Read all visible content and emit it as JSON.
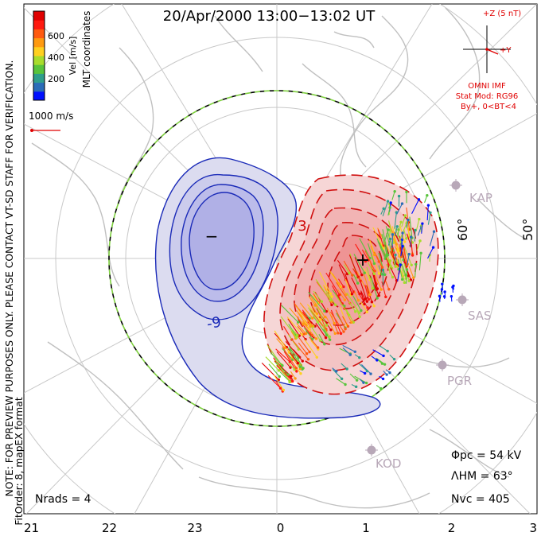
{
  "title": "20/Apr/2000  13:00−13:02  UT",
  "colorbar": {
    "label": "Vel [m/s]",
    "ticks": [
      "600",
      "400",
      "200"
    ],
    "colors": [
      "#0010ff",
      "#2a6cb8",
      "#2e9e8c",
      "#58c43c",
      "#a8dc2c",
      "#ffd020",
      "#ff9a10",
      "#ff5a10",
      "#ff1a10",
      "#e00000"
    ]
  },
  "coordinates_label": "MLT coordinates",
  "velocity_scale": "1000 m/s",
  "side_note_1": "NOTE: FOR PREVIEW PURPOSES ONLY. PLEASE CONTACT VT-SD STAFF FOR VERIFICATION.",
  "side_note_2": "FitOrder: 8, mapEX format",
  "imf": {
    "z_label": "+Z (5 nT)",
    "y_label": "+Y",
    "source": "OMNI IMF",
    "stat_mod": "Stat Mod: RG96",
    "condition": "By+, 0<BT<4"
  },
  "latitude_labels": [
    "60°",
    "50°"
  ],
  "radars": [
    "KAP",
    "SAS",
    "PGR",
    "KOD"
  ],
  "contour_labels": {
    "neg_min": "−",
    "pos_max": "+",
    "neg_contour": "-9",
    "pos_contour": "3"
  },
  "stats": {
    "phi_pc": "Φpc = 54 kV",
    "lambda_hm": "ΛHM = 63°",
    "n_vc": "Nvc = 405",
    "n_rads": "Nrads = 4"
  },
  "mlt_ticks": [
    "21",
    "22",
    "23",
    "0",
    "1",
    "2",
    "3"
  ],
  "colors": {
    "imf": "#e00000",
    "neg_contour": "#1a2ab8",
    "pos_contour": "#d01010",
    "neg_fill": "#dcdcf0",
    "pos_fill": "#f6c8c8",
    "map": "#c8c8c8"
  }
}
